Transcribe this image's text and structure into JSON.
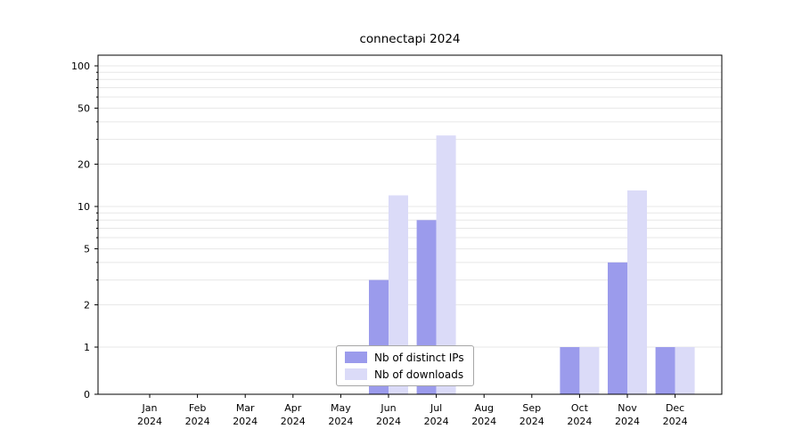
{
  "chart_data": {
    "type": "bar",
    "title": "connectapi 2024",
    "categories": [
      "Jan 2024",
      "Feb 2024",
      "Mar 2024",
      "Apr 2024",
      "May 2024",
      "Jun 2024",
      "Jul 2024",
      "Aug 2024",
      "Sep 2024",
      "Oct 2024",
      "Nov 2024",
      "Dec 2024"
    ],
    "series": [
      {
        "name": "Nb of distinct IPs",
        "color": "#9b9bec",
        "values": [
          0,
          0,
          0,
          0,
          0,
          3,
          8,
          0,
          0,
          1,
          4,
          1
        ]
      },
      {
        "name": "Nb of downloads",
        "color": "#dbdbf8",
        "values": [
          0,
          0,
          0,
          0,
          0,
          12,
          32,
          0,
          0,
          1,
          13,
          1
        ]
      }
    ],
    "xlabel": "",
    "ylabel": "",
    "yticks": [
      0,
      1,
      2,
      5,
      10,
      20,
      50,
      100
    ],
    "grid_values": [
      1,
      2,
      3,
      4,
      5,
      6,
      7,
      8,
      9,
      10,
      20,
      30,
      40,
      50,
      60,
      70,
      80,
      90,
      100
    ],
    "scale": "symlog",
    "ylim": [
      0,
      115
    ],
    "grid": true,
    "legend_position": "bottom-center"
  },
  "legend": {
    "items": [
      {
        "label": "Nb of distinct IPs"
      },
      {
        "label": "Nb of downloads"
      }
    ]
  },
  "colors": {
    "grid": "#e7e7e7",
    "spine": "#000000",
    "background": "#ffffff"
  }
}
